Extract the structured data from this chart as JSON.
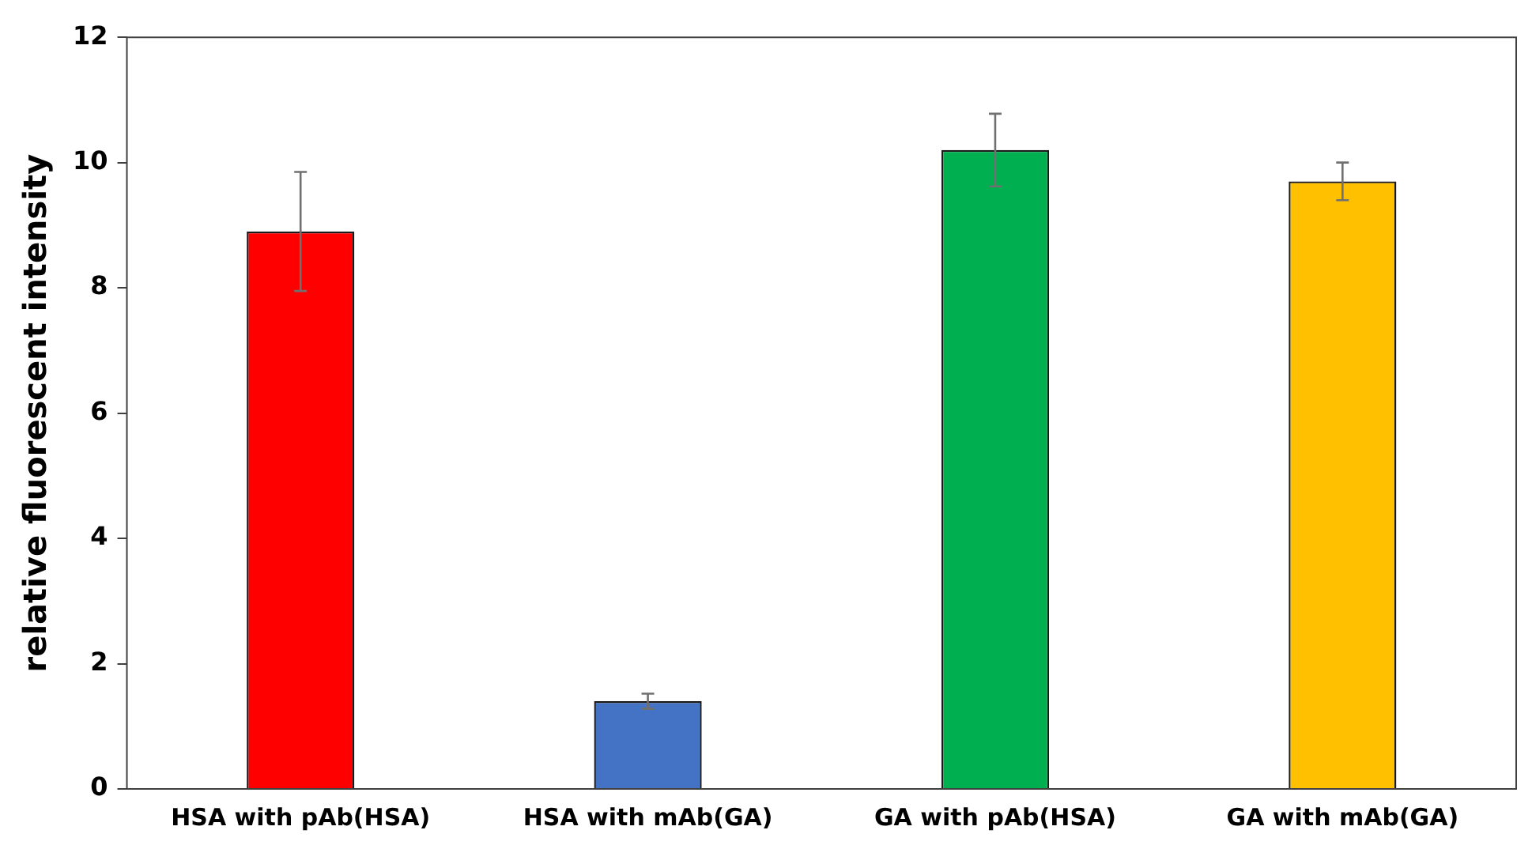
{
  "chart_data": {
    "type": "bar",
    "ylabel": "relative fluorescent intensity",
    "categories": [
      "HSA with pAb(HSA)",
      "HSA with mAb(GA)",
      "GA with pAb(HSA)",
      "GA with mAb(GA)"
    ],
    "values": [
      8.9,
      1.4,
      10.2,
      9.7
    ],
    "errors": [
      0.95,
      0.12,
      0.58,
      0.3
    ],
    "colors": [
      "#ff0000",
      "#4472c4",
      "#00b050",
      "#ffc000"
    ],
    "ylim": [
      0,
      12
    ],
    "yticks": [
      0,
      2,
      4,
      6,
      8,
      10,
      12
    ],
    "grid": false,
    "legend": false
  }
}
